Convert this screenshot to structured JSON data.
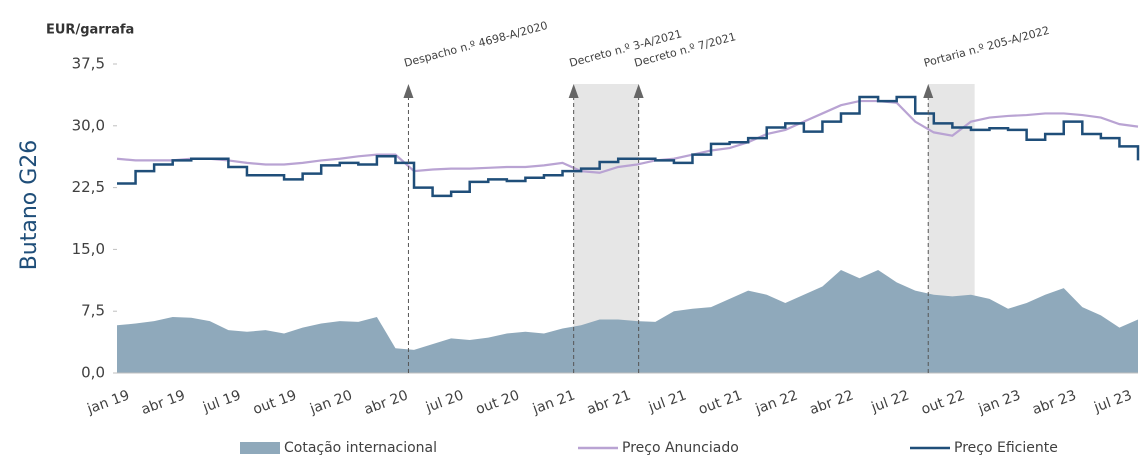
{
  "chart_data": {
    "type": "line",
    "y_label": "Butano G26",
    "unit_label": "EUR/garrafa",
    "categories": [
      "jan 19",
      null,
      null,
      "abr 19",
      null,
      null,
      "jul 19",
      null,
      null,
      "out 19",
      null,
      null,
      "jan 20",
      null,
      null,
      "abr 20",
      null,
      null,
      "jul 20",
      null,
      null,
      "out 20",
      null,
      null,
      "jan 21",
      null,
      null,
      "abr 21",
      null,
      null,
      "jul 21",
      null,
      null,
      "out 21",
      null,
      null,
      "jan 22",
      null,
      null,
      "abr 22",
      null,
      null,
      "jul 22",
      null,
      null,
      "out 22",
      null,
      null,
      "jan 23",
      null,
      null,
      "abr 23",
      null,
      null,
      "jul 23",
      null
    ],
    "series": [
      {
        "name": "Cotação internacional",
        "kind": "area",
        "color": "#8fa9bb",
        "values": [
          5.8,
          6.0,
          6.3,
          6.8,
          6.7,
          6.3,
          5.2,
          5.0,
          5.2,
          4.8,
          5.5,
          6.0,
          6.3,
          6.2,
          6.8,
          3.0,
          2.8,
          3.5,
          4.2,
          4.0,
          4.3,
          4.8,
          5.0,
          4.8,
          5.4,
          5.8,
          6.5,
          6.5,
          6.3,
          6.2,
          7.5,
          7.8,
          8.0,
          9.0,
          10.0,
          9.5,
          8.5,
          9.5,
          10.5,
          12.5,
          11.5,
          12.5,
          11.0,
          10.0,
          9.5,
          9.3,
          9.5,
          9.0,
          7.8,
          8.5,
          9.5,
          10.3,
          8.0,
          7.0,
          5.5,
          6.5
        ]
      },
      {
        "name": "Preço Anunciado",
        "kind": "line",
        "color": "#b9a3d3",
        "values": [
          26.0,
          25.8,
          25.8,
          25.8,
          26.0,
          26.0,
          25.8,
          25.5,
          25.3,
          25.3,
          25.5,
          25.8,
          26.0,
          26.3,
          26.5,
          26.5,
          24.5,
          24.7,
          24.8,
          24.8,
          24.9,
          25.0,
          25.0,
          25.2,
          25.5,
          24.5,
          24.3,
          25.0,
          25.3,
          25.8,
          26.0,
          26.5,
          27.0,
          27.3,
          28.0,
          29.0,
          29.5,
          30.5,
          31.5,
          32.5,
          33.0,
          33.0,
          32.8,
          30.5,
          29.2,
          28.8,
          30.5,
          31.0,
          31.2,
          31.3,
          31.5,
          31.5,
          31.3,
          31.0,
          30.2,
          29.9
        ]
      },
      {
        "name": "Preço Eficiente",
        "kind": "line",
        "step": true,
        "color": "#1f4e79",
        "values": [
          23.0,
          24.5,
          25.3,
          25.8,
          26.0,
          26.0,
          25.0,
          24.0,
          24.0,
          23.5,
          24.2,
          25.2,
          25.5,
          25.3,
          26.3,
          25.5,
          22.5,
          21.5,
          22.0,
          23.2,
          23.5,
          23.3,
          23.7,
          24.0,
          24.5,
          24.8,
          25.6,
          26.0,
          26.0,
          25.8,
          25.5,
          26.5,
          27.8,
          28.0,
          28.5,
          29.8,
          30.3,
          29.3,
          30.5,
          31.5,
          33.5,
          33.0,
          33.5,
          31.5,
          30.3,
          29.8,
          29.5,
          29.7,
          29.5,
          28.3,
          29.0,
          30.5,
          29.0,
          28.5,
          27.5,
          25.8
        ]
      }
    ],
    "ylim": [
      0,
      37.5
    ],
    "yticks": [
      {
        "value": 0,
        "label": "0,0"
      },
      {
        "value": 7.5,
        "label": "7,5"
      },
      {
        "value": 15,
        "label": "15,0"
      },
      {
        "value": 22.5,
        "label": "22,5"
      },
      {
        "value": 30,
        "label": "30,0"
      },
      {
        "value": 37.5,
        "label": "37,5"
      }
    ],
    "annotations": [
      {
        "text": "Despacho n.º 4698-A/2020",
        "x": 15.7
      },
      {
        "text": "Decreto n.º 3-A/2021",
        "x": 24.6
      },
      {
        "text": "Decreto n.º 7/2021",
        "x": 28.1
      },
      {
        "text": "Portaria n.º 205-A/2022",
        "x": 43.7
      }
    ],
    "shaded": [
      {
        "from": 24.6,
        "to": 28.1
      },
      {
        "from": 43.7,
        "to": 46.2
      }
    ],
    "shade_color": "#e6e6e6",
    "legend": "bottom"
  }
}
